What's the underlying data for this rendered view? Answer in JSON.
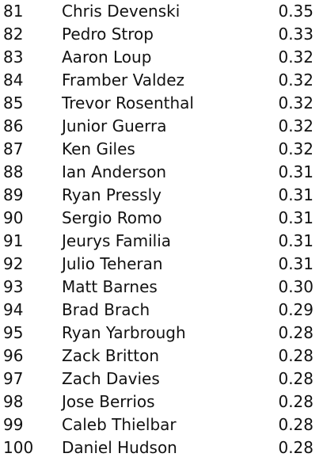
{
  "rows": [
    {
      "rank": "81",
      "name": "Chris Devenski",
      "value": "0.35"
    },
    {
      "rank": "82",
      "name": "Pedro Strop",
      "value": "0.33"
    },
    {
      "rank": "83",
      "name": "Aaron Loup",
      "value": "0.32"
    },
    {
      "rank": "84",
      "name": "Framber Valdez",
      "value": "0.32"
    },
    {
      "rank": "85",
      "name": "Trevor Rosenthal",
      "value": "0.32"
    },
    {
      "rank": "86",
      "name": "Junior Guerra",
      "value": "0.32"
    },
    {
      "rank": "87",
      "name": "Ken Giles",
      "value": "0.32"
    },
    {
      "rank": "88",
      "name": "Ian Anderson",
      "value": "0.31"
    },
    {
      "rank": "89",
      "name": "Ryan Pressly",
      "value": "0.31"
    },
    {
      "rank": "90",
      "name": "Sergio Romo",
      "value": "0.31"
    },
    {
      "rank": "91",
      "name": "Jeurys Familia",
      "value": "0.31"
    },
    {
      "rank": "92",
      "name": "Julio Teheran",
      "value": "0.31"
    },
    {
      "rank": "93",
      "name": "Matt Barnes",
      "value": "0.30"
    },
    {
      "rank": "94",
      "name": "Brad Brach",
      "value": "0.29"
    },
    {
      "rank": "95",
      "name": "Ryan Yarbrough",
      "value": "0.28"
    },
    {
      "rank": "96",
      "name": "Zack Britton",
      "value": "0.28"
    },
    {
      "rank": "97",
      "name": "Zach Davies",
      "value": "0.28"
    },
    {
      "rank": "98",
      "name": "Jose Berrios",
      "value": "0.28"
    },
    {
      "rank": "99",
      "name": "Caleb Thielbar",
      "value": "0.28"
    },
    {
      "rank": "100",
      "name": "Daniel Hudson",
      "value": "0.28"
    }
  ]
}
